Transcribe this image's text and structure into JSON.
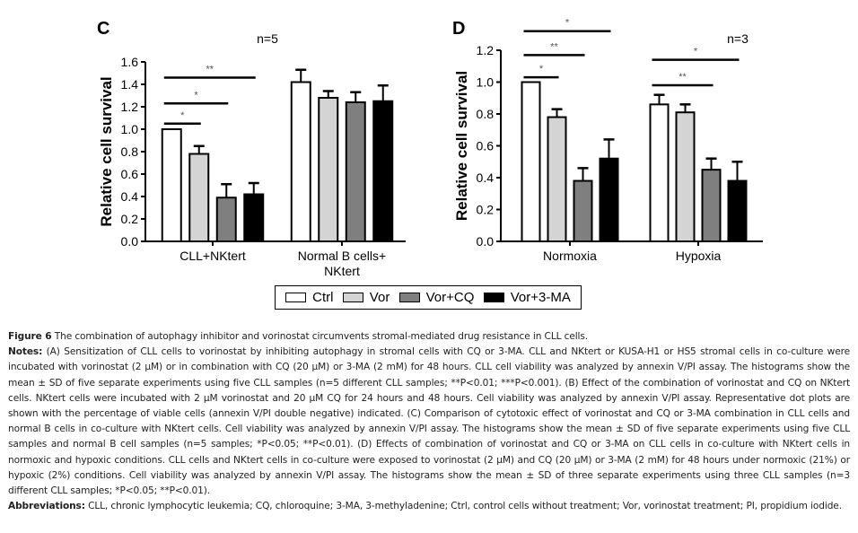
{
  "chart_data": [
    {
      "type": "bar",
      "panel_label": "C",
      "title": "n=5",
      "xlabel": "",
      "ylabel": "Relative cell survival",
      "ylim": [
        0,
        1.6
      ],
      "yticks": [
        "0.0",
        "0.2",
        "0.4",
        "0.6",
        "0.8",
        "1.0",
        "1.2",
        "1.4",
        "1.6"
      ],
      "categories": [
        "CLL+NKtert",
        "Normal B cells+ NKtert"
      ],
      "category_lines": [
        [
          "CLL+NKtert"
        ],
        [
          "Normal B cells+",
          "NKtert"
        ]
      ],
      "series": [
        {
          "name": "Ctrl",
          "values": [
            1.0,
            1.42
          ],
          "errors": [
            0.0,
            0.11
          ]
        },
        {
          "name": "Vor",
          "values": [
            0.78,
            1.28
          ],
          "errors": [
            0.07,
            0.06
          ]
        },
        {
          "name": "Vor+CQ",
          "values": [
            0.39,
            1.24
          ],
          "errors": [
            0.12,
            0.09
          ]
        },
        {
          "name": "Vor+3-MA",
          "values": [
            0.42,
            1.25
          ],
          "errors": [
            0.1,
            0.14
          ]
        }
      ],
      "significance": [
        {
          "group": 0,
          "from": 0,
          "to": 1,
          "label": "*",
          "y": 1.05
        },
        {
          "group": 0,
          "from": 0,
          "to": 2,
          "label": "*",
          "y": 1.23
        },
        {
          "group": 0,
          "from": 0,
          "to": 3,
          "label": "**",
          "y": 1.46
        }
      ]
    },
    {
      "type": "bar",
      "panel_label": "D",
      "title": "n=3",
      "xlabel": "",
      "ylabel": "Relative cell survival",
      "ylim": [
        0,
        1.2
      ],
      "yticks": [
        "0.0",
        "0.2",
        "0.4",
        "0.6",
        "0.8",
        "1.0",
        "1.2"
      ],
      "categories": [
        "Normoxia",
        "Hypoxia"
      ],
      "category_lines": [
        [
          "Normoxia"
        ],
        [
          "Hypoxia"
        ]
      ],
      "series": [
        {
          "name": "Ctrl",
          "values": [
            1.0,
            0.86
          ],
          "errors": [
            0.0,
            0.06
          ]
        },
        {
          "name": "Vor",
          "values": [
            0.78,
            0.81
          ],
          "errors": [
            0.05,
            0.05
          ]
        },
        {
          "name": "Vor+CQ",
          "values": [
            0.38,
            0.45
          ],
          "errors": [
            0.08,
            0.07
          ]
        },
        {
          "name": "Vor+3-MA",
          "values": [
            0.52,
            0.38
          ],
          "errors": [
            0.12,
            0.12
          ]
        }
      ],
      "significance": [
        {
          "group": 0,
          "from": 0,
          "to": 1,
          "label": "*",
          "y": 1.03
        },
        {
          "group": 0,
          "from": 0,
          "to": 2,
          "label": "**",
          "y": 1.17
        },
        {
          "group": 0,
          "from": 0,
          "to": 3,
          "label": "*",
          "y": 1.32
        },
        {
          "group": 1,
          "from": 0,
          "to": 2,
          "label": "**",
          "y": 0.98
        },
        {
          "group": 1,
          "from": 0,
          "to": 3,
          "label": "*",
          "y": 1.14
        }
      ]
    }
  ],
  "legend": {
    "items": [
      {
        "label": "Ctrl",
        "color": "#ffffff"
      },
      {
        "label": "Vor",
        "color": "#d4d4d4"
      },
      {
        "label": "Vor+CQ",
        "color": "#7f7f7f"
      },
      {
        "label": "Vor+3-MA",
        "color": "#000000"
      }
    ]
  },
  "caption": {
    "figure_label": "Figure 6",
    "figure_title": "The combination of autophagy inhibitor and vorinostat circumvents stromal-mediated drug resistance in CLL cells.",
    "notes_label": "Notes:",
    "notes_text": "(A) Sensitization of CLL cells to vorinostat by inhibiting autophagy in stromal cells with CQ or 3-MA. CLL and NKtert or KUSA-H1 or HS5 stromal cells in co-culture were incubated with vorinostat (2 µM) or in combination with CQ (20 µM) or 3-MA (2 mM) for 48 hours. CLL cell viability was analyzed by annexin V/PI assay. The histograms show the mean ± SD of five separate experiments using five CLL samples (n=5 different CLL samples; **P<0.01; ***P<0.001). (B) Effect of the combination of vorinostat and CQ on NKtert cells. NKtert cells were incubated with 2 µM vorinostat and 20 µM CQ for 24 hours and 48 hours. Cell viability was analyzed by annexin V/PI assay. Representative dot plots are shown with the percentage of viable cells (annexin V/PI double negative) indicated. (C) Comparison of cytotoxic effect of vorinostat and CQ or 3-MA combination in CLL cells and normal B cells in co-culture with NKtert cells. Cell viability was analyzed by annexin V/PI assay. The histograms show the mean ± SD of five separate experiments using five CLL samples and normal B cell samples (n=5 samples; *P<0.05; **P<0.01). (D) Effects of combination of vorinostat and CQ or 3-MA on CLL cells in co-culture with NKtert cells in normoxic and hypoxic conditions. CLL cells and NKtert cells in co-culture were exposed to vorinostat (2 µM) and CQ (20 µM) or 3-MA (2 mM) for 48 hours under normoxic (21%) or hypoxic (2%) conditions. Cell viability was analyzed by annexin V/PI assay. The histograms show the mean ± SD of three separate experiments using three CLL samples (n=3 different CLL samples; *P<0.05; **P<0.01).",
    "abbrev_label": "Abbreviations:",
    "abbrev_text": "CLL, chronic lymphocytic leukemia; CQ, chloroquine; 3-MA, 3-methyladenine; Ctrl, control cells without treatment; Vor, vorinostat treatment; PI, propidium iodide."
  }
}
